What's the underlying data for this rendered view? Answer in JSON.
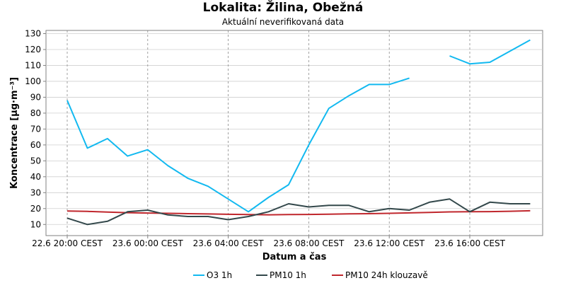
{
  "chart_data": {
    "type": "line",
    "title": "Lokalita: Žilina, Obežná",
    "subtitle": "Aktuální neverifikovaná data",
    "xlabel": "Datum a čas",
    "ylabel": "Koncentrace [µg·m⁻³]",
    "ylim": [
      3,
      132
    ],
    "y_ticks": [
      10,
      20,
      30,
      40,
      50,
      60,
      70,
      80,
      90,
      100,
      110,
      120,
      130
    ],
    "x_ticks": [
      {
        "label": "22.6 20:00 CEST",
        "hour": 0
      },
      {
        "label": "23.6 00:00 CEST",
        "hour": 4
      },
      {
        "label": "23.6 04:00 CEST",
        "hour": 8
      },
      {
        "label": "23.6 08:00 CEST",
        "hour": 12
      },
      {
        "label": "23.6 12:00 CEST",
        "hour": 16
      },
      {
        "label": "23.6 16:00 CEST",
        "hour": 20
      }
    ],
    "grid": true,
    "legend_position": "bottom",
    "x": [
      "22.6 20:00",
      "22.6 21:00",
      "22.6 22:00",
      "22.6 23:00",
      "23.6 00:00",
      "23.6 01:00",
      "23.6 02:00",
      "23.6 03:00",
      "23.6 04:00",
      "23.6 05:00",
      "23.6 06:00",
      "23.6 07:00",
      "23.6 08:00",
      "23.6 09:00",
      "23.6 10:00",
      "23.6 11:00",
      "23.6 12:00",
      "23.6 13:00",
      "23.6 14:00",
      "23.6 15:00",
      "23.6 16:00",
      "23.6 17:00",
      "23.6 18:00",
      "23.6 19:00"
    ],
    "series": [
      {
        "name": "O3 1h",
        "color": "#12b9f0",
        "values": [
          88,
          58,
          64,
          53,
          57,
          47,
          39,
          34,
          26,
          18,
          27,
          35,
          60,
          83,
          91,
          98,
          98,
          102,
          null,
          116,
          111,
          112,
          119,
          126
        ]
      },
      {
        "name": "PM10 1h",
        "color": "#33484b",
        "values": [
          14,
          10,
          12,
          18,
          19,
          16,
          15,
          15,
          13,
          15,
          18,
          23,
          21,
          22,
          22,
          18,
          20,
          19,
          24,
          26,
          18,
          24,
          23,
          23
        ]
      },
      {
        "name": "PM10 24h klouzavě",
        "color": "#c0272d",
        "values": [
          18.5,
          18.2,
          17.8,
          17.4,
          17.2,
          17.0,
          16.8,
          16.6,
          16.4,
          16.2,
          16.1,
          16.2,
          16.3,
          16.5,
          16.7,
          16.8,
          17.0,
          17.3,
          17.6,
          17.9,
          18.0,
          18.1,
          18.3,
          18.6
        ]
      }
    ]
  }
}
